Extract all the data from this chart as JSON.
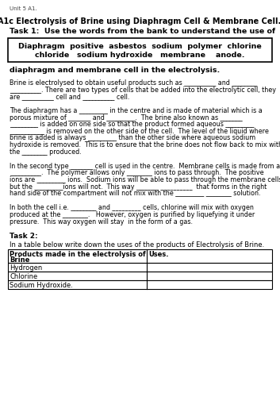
{
  "unit_label": "Unit 5 A1.",
  "title": "A1c Electrolysis of Brine using Diaphragm Cell & Membrane Cell.",
  "task1_heading": "Task 1:  Use the words from the bank to understand the use of",
  "word_bank_line1": "Diaphragm  positive  asbestos  sodium  polymer  chlorine",
  "word_bank_line2": "chloride   sodium hydroxide   membrane    anode.",
  "bold_subheading": "diaphragm and membrane cell in the electrolysis.",
  "para1_lines": [
    "Brine is electrolysed to obtain useful products such as __________ and ________",
    "__________. There are two types of cells that be added into the electrolytic cell, they",
    "are __________ cell and __________ cell."
  ],
  "para2_lines": [
    "The diaphragm has a _________ in the centre and is made of material which is a",
    "porous mixture of _______ and _________.  The brine also known as _______",
    "_________ is added on one side so that the product formed aqueous _________",
    "___________ is removed on the other side of the cell.  The level of the liquid where",
    "brine is added is always _________ than the other side where aqueous sodium",
    "hydroxide is removed.  This is to ensure that the brine does not flow back to mix with",
    "the ________ produced."
  ],
  "para3_lines": [
    "In the second type _______ cell is used in the centre.  Membrane cells is made from a",
    "__________.  The polymer allows only ________ ions to pass through.  The positive",
    "ions are _________ ions.  Sodium ions will be able to pass through the membrane cells",
    "but the _________ions will not.  This way _______ __________  that forms in the right",
    "hand side of the compartment will not mix with the _________ ________ solution."
  ],
  "para4_lines": [
    "In both the cell i.e. ________ and _________ cells, chlorine will mix with oxygen",
    "produced at the ________.   However, oxygen is purified by liquefying it under",
    "pressure.  This way oxygen will stay  in the form of a gas."
  ],
  "task2_heading": "Task 2:",
  "task2_instruction": "In a table below write down the uses of the products of Electrolysis of Brine.",
  "table_col1_header_line1": "Products made in the electrolysis of",
  "table_col1_header_line2": "Brine",
  "table_col2_header": "Uses.",
  "table_rows": [
    "Hydrogen",
    "Chlorine",
    "Sodium Hydroxide."
  ],
  "bg_color": "#ffffff",
  "text_color": "#000000"
}
